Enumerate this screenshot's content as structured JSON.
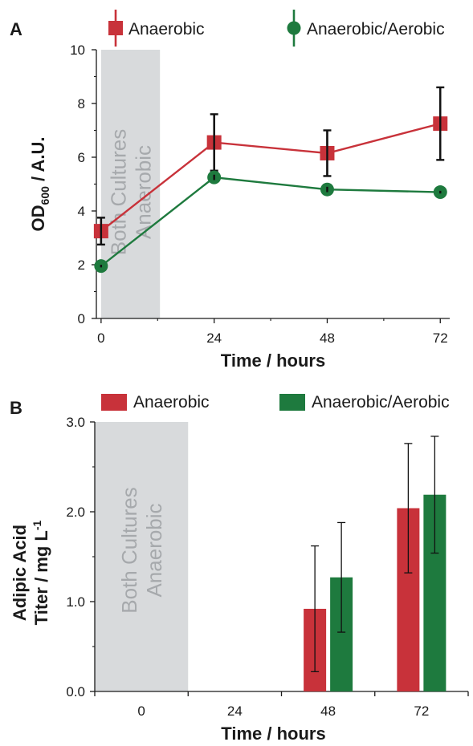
{
  "colors": {
    "anaerobic": "#c8323a",
    "aerobic": "#1e7a3e",
    "shade": "#d8dadc",
    "shade_text": "#a6a9ac",
    "axis": "#1a1a1a"
  },
  "chart_data": [
    {
      "panel": "A",
      "type": "line",
      "x": [
        0,
        24,
        48,
        72
      ],
      "xticks": [
        "0",
        "24",
        "48",
        "72"
      ],
      "xlabel": "Time / hours",
      "ylabel": {
        "main": "OD",
        "sub": "600",
        "rest": " / A.U."
      },
      "ylim": [
        0,
        10
      ],
      "yticks": [
        "0",
        "2",
        "4",
        "6",
        "8",
        "10"
      ],
      "shaded_region": {
        "x_from": 0,
        "x_to": 12.5,
        "label_lines": [
          "Both Cultures",
          "Anaerobic"
        ]
      },
      "series": [
        {
          "name": "Anaerobic",
          "marker": "square",
          "values": [
            3.25,
            6.55,
            6.15,
            7.25
          ],
          "errors": [
            0.5,
            1.05,
            0.85,
            1.35
          ]
        },
        {
          "name": "Anaerobic/Aerobic",
          "marker": "circle",
          "values": [
            1.95,
            5.25,
            4.8,
            4.7
          ],
          "errors": [
            0.05,
            0.1,
            0.1,
            0.05
          ]
        }
      ]
    },
    {
      "panel": "B",
      "type": "bar",
      "categories": [
        "0",
        "24",
        "48",
        "72"
      ],
      "xlabel": "Time / hours",
      "ylabel": {
        "line1": "Adipic Acid",
        "line2_main": "Titer / mg L",
        "line2_sup": "-1"
      },
      "ylim": [
        0,
        3.0
      ],
      "yticks": [
        "0.0",
        "1.0",
        "2.0",
        "3.0"
      ],
      "shaded_region": {
        "from_category": 0,
        "label_lines": [
          "Both Cultures",
          "Anaerobic"
        ]
      },
      "series": [
        {
          "name": "Anaerobic",
          "values": [
            null,
            null,
            0.92,
            2.04
          ],
          "errors": [
            null,
            null,
            0.7,
            0.72
          ]
        },
        {
          "name": "Anaerobic/Aerobic",
          "values": [
            null,
            null,
            1.27,
            2.19
          ],
          "errors": [
            null,
            null,
            0.61,
            0.65
          ]
        }
      ]
    }
  ]
}
